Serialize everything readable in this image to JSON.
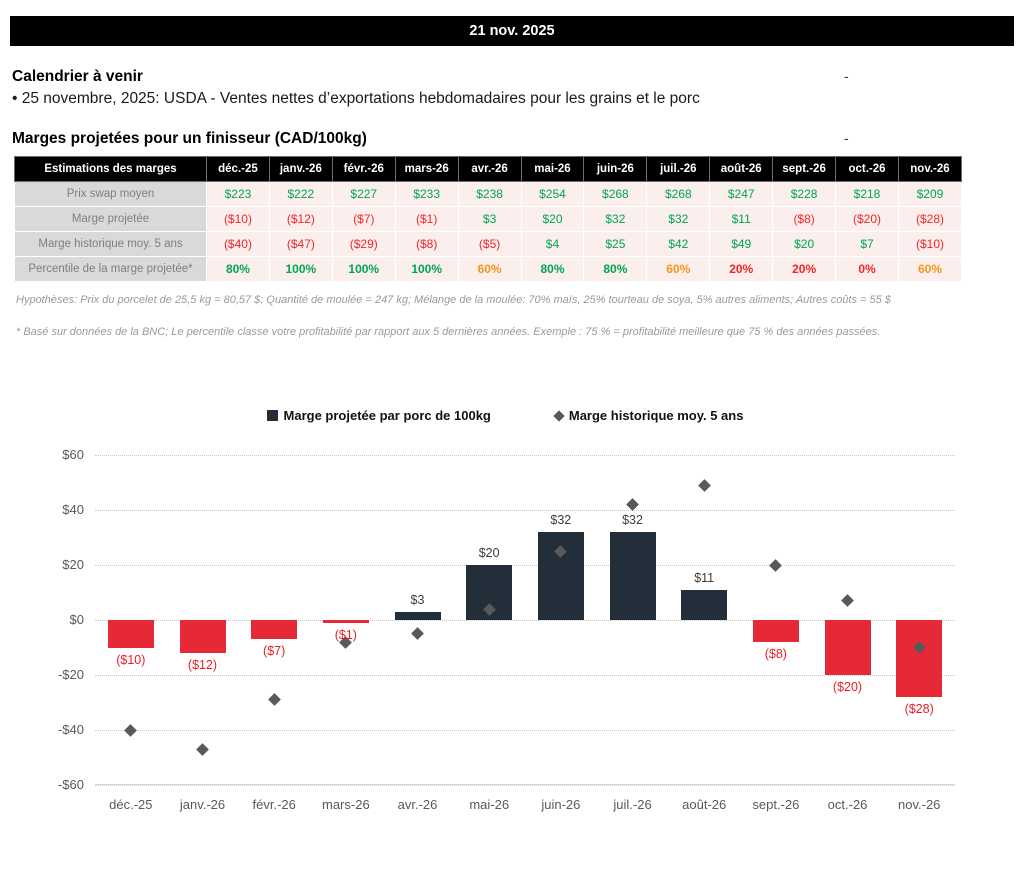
{
  "misc": {
    "dash": "-"
  },
  "header": {
    "date": "21 nov. 2025"
  },
  "calendar": {
    "title": "Calendrier à venir",
    "items": [
      "• 25 novembre, 2025: USDA - Ventes nettes d’exportations hebdomadaires pour les grains et le porc"
    ]
  },
  "margins_section": {
    "title": "Marges projetées pour un finisseur (CAD/100kg)"
  },
  "table": {
    "columns": [
      "Estimations des marges",
      "déc.-25",
      "janv.-26",
      "févr.-26",
      "mars-26",
      "avr.-26",
      "mai-26",
      "juin-26",
      "juil.-26",
      "août-26",
      "sept.-26",
      "oct.-26",
      "nov.-26"
    ],
    "rows": [
      {
        "label": "Prix swap moyen",
        "values": [
          "$223",
          "$222",
          "$227",
          "$233",
          "$238",
          "$254",
          "$268",
          "$268",
          "$247",
          "$228",
          "$218",
          "$209"
        ],
        "colors": [
          "green",
          "green",
          "green",
          "green",
          "green",
          "green",
          "green",
          "green",
          "green",
          "green",
          "green",
          "green"
        ],
        "bold": false
      },
      {
        "label": "Marge projetée",
        "values": [
          "($10)",
          "($12)",
          "($7)",
          "($1)",
          "$3",
          "$20",
          "$32",
          "$32",
          "$11",
          "($8)",
          "($20)",
          "($28)"
        ],
        "colors": [
          "red",
          "red",
          "red",
          "red",
          "green",
          "green",
          "green",
          "green",
          "green",
          "red",
          "red",
          "red"
        ],
        "bold": false
      },
      {
        "label": "Marge historique moy. 5 ans",
        "values": [
          "($40)",
          "($47)",
          "($29)",
          "($8)",
          "($5)",
          "$4",
          "$25",
          "$42",
          "$49",
          "$20",
          "$7",
          "($10)"
        ],
        "colors": [
          "red",
          "red",
          "red",
          "red",
          "red",
          "green",
          "green",
          "green",
          "green",
          "green",
          "green",
          "red"
        ],
        "bold": false
      },
      {
        "label": "Percentile de la marge projetée*",
        "values": [
          "80%",
          "100%",
          "100%",
          "100%",
          "60%",
          "80%",
          "80%",
          "60%",
          "20%",
          "20%",
          "0%",
          "60%"
        ],
        "colors": [
          "green",
          "green",
          "green",
          "green",
          "orange",
          "green",
          "green",
          "orange",
          "red",
          "red",
          "red",
          "orange"
        ],
        "bold": true
      }
    ]
  },
  "notes": [
    "Hypothèses: Prix du porcelet de 25,5 kg = 80,57 $; Quantité de moulée = 247 kg; Mélange de la moulée: 70% maïs, 25% tourteau de soya, 5% autres aliments; Autres coûts = 55 $",
    "* Basé sur données de la BNC; Le percentile classe votre profitabilité par rapport aux 5 dernières années. Exemple : 75 % = profitabilité meilleure que 75 % des années passées."
  ],
  "chart_data": {
    "type": "bar",
    "categories": [
      "déc.-25",
      "janv.-26",
      "févr.-26",
      "mars-26",
      "avr.-26",
      "mai-26",
      "juin-26",
      "juil.-26",
      "août-26",
      "sept.-26",
      "oct.-26",
      "nov.-26"
    ],
    "series": [
      {
        "name": "Marge projetée par porc de 100kg",
        "type": "bar",
        "values": [
          -10,
          -12,
          -7,
          -1,
          3,
          20,
          32,
          32,
          11,
          -8,
          -20,
          -28
        ],
        "labels": [
          "($10)",
          "($12)",
          "($7)",
          "($1)",
          "$3",
          "$20",
          "$32",
          "$32",
          "$11",
          "($8)",
          "($20)",
          "($28)"
        ],
        "positive_color": "#222e3a",
        "negative_color": "#e52937"
      },
      {
        "name": "Marge historique moy. 5 ans",
        "type": "scatter-diamond",
        "values": [
          -40,
          -47,
          -29,
          -8,
          -5,
          4,
          25,
          42,
          49,
          20,
          7,
          -10
        ],
        "color": "#595959"
      }
    ],
    "title": "",
    "xlabel": "",
    "ylabel": "",
    "ylim": [
      -60,
      60
    ],
    "yticks": [
      60,
      40,
      20,
      0,
      -20,
      -40,
      -60
    ],
    "ytick_labels": [
      "$60",
      "$40",
      "$20",
      "$0",
      "-$20",
      "-$40",
      "-$60"
    ],
    "grid": "dotted horizontal",
    "legend_position": "top-center"
  }
}
